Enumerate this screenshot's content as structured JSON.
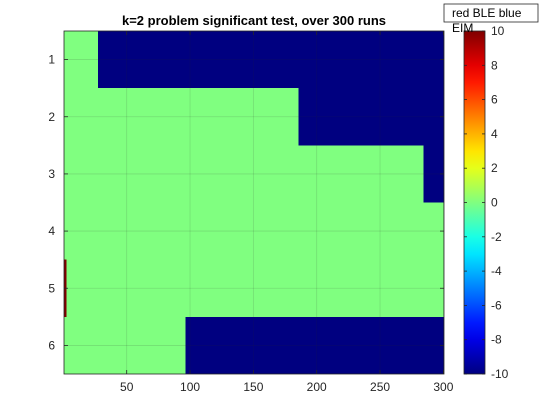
{
  "chart_data": {
    "type": "heatmap",
    "title": "k=2 problem significant test, over 300 runs",
    "xlabel": "",
    "ylabel": "",
    "xlim": [
      0.5,
      300.5
    ],
    "ylim": [
      0.5,
      6.5
    ],
    "y_reversed": true,
    "x_ticks": [
      50,
      100,
      150,
      200,
      250,
      300
    ],
    "y_ticks": [
      1,
      2,
      3,
      4,
      5,
      6
    ],
    "grid": true,
    "legend": {
      "placement": "top-right",
      "entries": [
        "red BLE blue EIM"
      ]
    },
    "colorbar": {
      "colormap": "jet",
      "clim": [
        -10,
        10
      ],
      "ticks": [
        -10,
        -8,
        -6,
        -4,
        -2,
        0,
        2,
        4,
        6,
        8,
        10
      ]
    },
    "segments": [
      {
        "row": 1,
        "x_start": 1,
        "x_end": 27,
        "value": 0
      },
      {
        "row": 1,
        "x_start": 28,
        "x_end": 300,
        "value": -10
      },
      {
        "row": 2,
        "x_start": 1,
        "x_end": 185,
        "value": 0
      },
      {
        "row": 2,
        "x_start": 186,
        "x_end": 300,
        "value": -10
      },
      {
        "row": 3,
        "x_start": 1,
        "x_end": 284,
        "value": 0
      },
      {
        "row": 3,
        "x_start": 285,
        "x_end": 300,
        "value": -10
      },
      {
        "row": 4,
        "x_start": 1,
        "x_end": 300,
        "value": 0
      },
      {
        "row": 5,
        "x_start": 1,
        "x_end": 2,
        "value": 10
      },
      {
        "row": 5,
        "x_start": 3,
        "x_end": 300,
        "value": 0
      },
      {
        "row": 6,
        "x_start": 1,
        "x_end": 96,
        "value": 0
      },
      {
        "row": 6,
        "x_start": 97,
        "x_end": 300,
        "value": -10
      }
    ]
  }
}
